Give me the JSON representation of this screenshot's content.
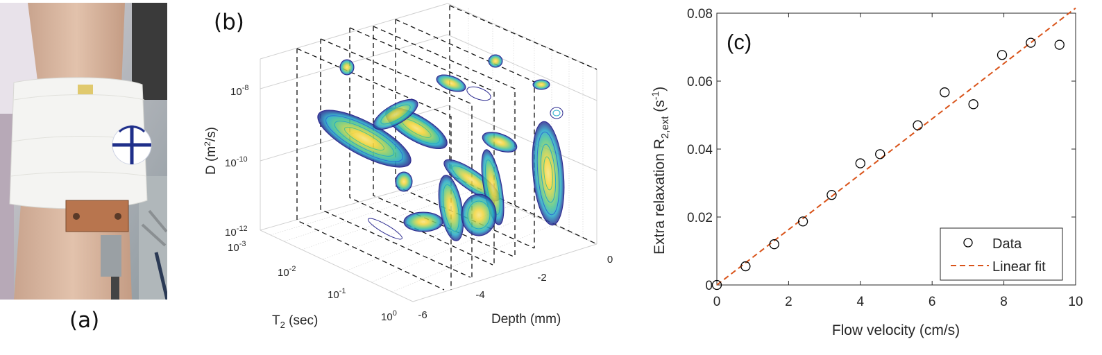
{
  "panel_labels": {
    "a": "(a)",
    "b": "(b)",
    "c": "(c)"
  },
  "panel_b": {
    "xlabel_main": "Depth",
    "xlabel_unit": "(mm)",
    "ylabel_t2": "T",
    "ylabel_t2_sub": "2",
    "ylabel_t2_unit": "(sec)",
    "zlabel_d": "D",
    "zlabel_d_unit_open": "(m",
    "zlabel_d_sup": "2",
    "zlabel_d_unit_close": "/s)",
    "depth_ticks": [
      "-6",
      "-4",
      "-2",
      "0"
    ],
    "t2_ticks": [
      {
        "base": "10",
        "exp": "-3"
      },
      {
        "base": "10",
        "exp": "-2"
      },
      {
        "base": "10",
        "exp": "-1"
      },
      {
        "base": "10",
        "exp": "0"
      }
    ],
    "d_ticks": [
      {
        "base": "10",
        "exp": "-12"
      },
      {
        "base": "10",
        "exp": "-10"
      },
      {
        "base": "10",
        "exp": "-8"
      }
    ],
    "contour_colors": [
      "#2b2a8f",
      "#2f6fd0",
      "#23a9c9",
      "#4fc58b",
      "#a8cf58",
      "#f2d43a",
      "#f7e37a"
    ]
  },
  "chart_data": {
    "type": "scatter",
    "xlabel": "Flow velocity (cm/s)",
    "ylabel_main": "Extra relaxation R",
    "ylabel_sub": "2,ext",
    "ylabel_unit_open": "(s",
    "ylabel_unit_sup": "-1",
    "ylabel_unit_close": ")",
    "xlim": [
      0,
      10
    ],
    "ylim": [
      0,
      0.08
    ],
    "x_ticks": [
      "0",
      "2",
      "4",
      "6",
      "8",
      "10"
    ],
    "y_ticks": [
      "0",
      "0.02",
      "0.04",
      "0.06",
      "0.08"
    ],
    "legend_position": "bottom-right",
    "series": [
      {
        "name": "Data",
        "marker": "circle",
        "color": "#000000",
        "x": [
          0,
          0.8,
          1.6,
          2.4,
          3.2,
          4.0,
          4.55,
          5.6,
          6.35,
          7.15,
          7.95,
          8.75,
          9.55
        ],
        "y": [
          0.0,
          0.0055,
          0.012,
          0.0187,
          0.0265,
          0.0358,
          0.0385,
          0.047,
          0.0567,
          0.0532,
          0.0677,
          0.0713,
          0.0707
        ]
      },
      {
        "name": "Linear fit",
        "style": "dashed",
        "color": "#d95319",
        "x": [
          0,
          10
        ],
        "y": [
          0,
          0.0815
        ]
      }
    ]
  }
}
